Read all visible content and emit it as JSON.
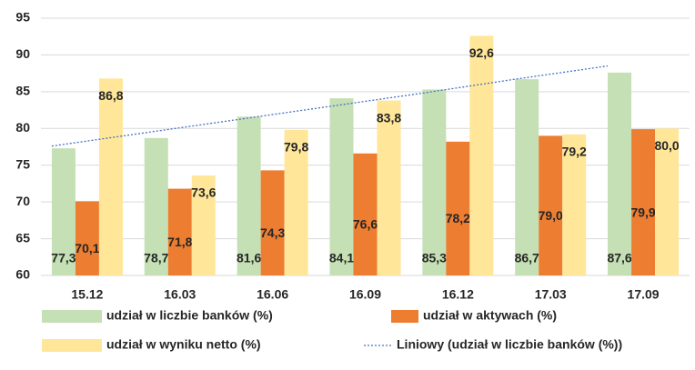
{
  "chart_data": {
    "type": "bar",
    "categories": [
      "15.12",
      "16.03",
      "16.06",
      "16.09",
      "16.12",
      "17.03",
      "17.09"
    ],
    "series": [
      {
        "name": "udział w liczbie banków (%)",
        "color": "#c5e0b4",
        "values": [
          77.3,
          78.7,
          81.6,
          84.1,
          85.3,
          86.7,
          87.6
        ],
        "value_labels": [
          "77,3",
          "78,7",
          "81,6",
          "84,1",
          "85,3",
          "86,7",
          "87,6"
        ]
      },
      {
        "name": "udział w aktywach (%)",
        "color": "#ed7d31",
        "values": [
          70.1,
          71.8,
          74.3,
          76.6,
          78.2,
          79.0,
          79.9
        ],
        "value_labels": [
          "70,1",
          "71,8",
          "74,3",
          "76,6",
          "78,2",
          "79,0",
          "79,9"
        ]
      },
      {
        "name": "udział w wyniku netto (%)",
        "color": "#ffe699",
        "values": [
          86.8,
          73.6,
          79.8,
          83.8,
          92.6,
          79.2,
          80.0
        ],
        "value_labels": [
          "86,8",
          "73,6",
          "79,8",
          "83,8",
          "92,6",
          "79,2",
          "80,0"
        ]
      },
      {
        "name": "Liniowy (udział w liczbie banków (%))",
        "type": "trendline",
        "color": "#4472c4",
        "values": [
          77.6,
          79.4,
          81.2,
          83.0,
          84.8,
          86.7,
          88.5
        ]
      }
    ],
    "ylim": [
      60,
      95
    ],
    "yticks": [
      60,
      65,
      70,
      75,
      80,
      85,
      90,
      95
    ],
    "grid": true,
    "legend_position": "bottom"
  }
}
